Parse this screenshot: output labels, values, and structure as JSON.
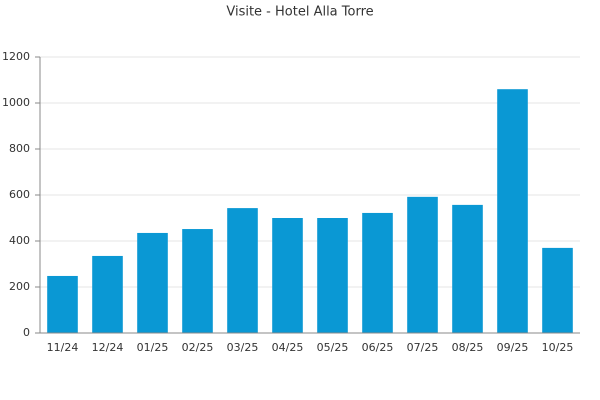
{
  "chart_data": {
    "type": "bar",
    "title": "Visite - Hotel Alla Torre",
    "categories": [
      "11/24",
      "12/24",
      "01/25",
      "02/25",
      "03/25",
      "04/25",
      "05/25",
      "06/25",
      "07/25",
      "08/25",
      "09/25",
      "10/25"
    ],
    "values": [
      248,
      335,
      435,
      452,
      543,
      500,
      500,
      522,
      592,
      557,
      1060,
      370
    ],
    "color": "#0a98d4",
    "ylim": [
      0,
      1200
    ],
    "yticks": [
      0,
      200,
      400,
      600,
      800,
      1000,
      1200
    ],
    "grid": true
  }
}
